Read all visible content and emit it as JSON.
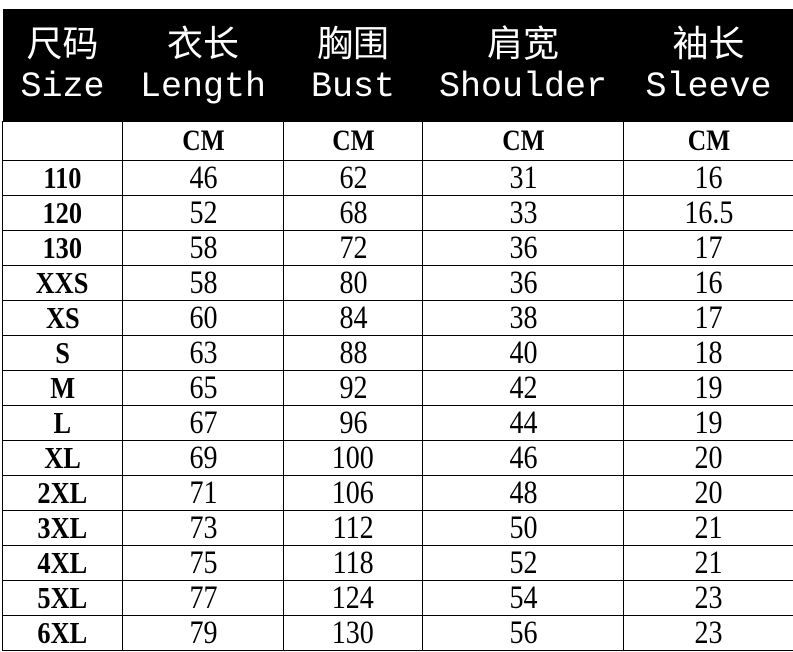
{
  "header": {
    "zh": [
      "尺码",
      "衣长",
      "胸围",
      "肩宽",
      "袖长"
    ],
    "en": [
      "Size",
      "Length",
      "Bust",
      "Shoulder",
      "Sleeve"
    ]
  },
  "units": [
    "",
    "CM",
    "CM",
    "CM",
    "CM"
  ],
  "rows": [
    [
      "110",
      "46",
      "62",
      "31",
      "16"
    ],
    [
      "120",
      "52",
      "68",
      "33",
      "16.5"
    ],
    [
      "130",
      "58",
      "72",
      "36",
      "17"
    ],
    [
      "XXS",
      "58",
      "80",
      "36",
      "16"
    ],
    [
      "XS",
      "60",
      "84",
      "38",
      "17"
    ],
    [
      "S",
      "63",
      "88",
      "40",
      "18"
    ],
    [
      "M",
      "65",
      "92",
      "42",
      "19"
    ],
    [
      "L",
      "67",
      "96",
      "44",
      "19"
    ],
    [
      "XL",
      "69",
      "100",
      "46",
      "20"
    ],
    [
      "2XL",
      "71",
      "106",
      "48",
      "20"
    ],
    [
      "3XL",
      "73",
      "112",
      "50",
      "21"
    ],
    [
      "4XL",
      "75",
      "118",
      "52",
      "21"
    ],
    [
      "5XL",
      "77",
      "124",
      "54",
      "23"
    ],
    [
      "6XL",
      "79",
      "130",
      "56",
      "23"
    ]
  ]
}
